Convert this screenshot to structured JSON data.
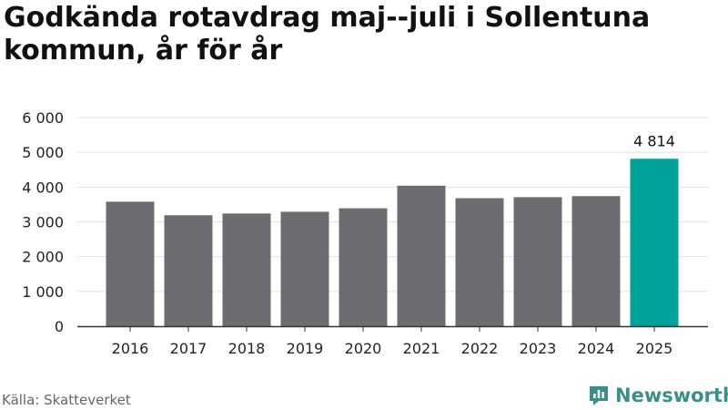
{
  "title": "Godkända rotavdrag maj--juli i Sollentuna kommun, år för år",
  "source": "Källa: Skatteverket",
  "brand": {
    "name": "Newsworthy",
    "icon": "newsworthy-logo-icon",
    "color": "#3a8f8a"
  },
  "colors": {
    "bar": "#6d6c71",
    "highlight": "#00a29a",
    "grid": "#e2e2e2",
    "axis": "#333333"
  },
  "chart_data": {
    "type": "bar",
    "categories": [
      "2016",
      "2017",
      "2018",
      "2019",
      "2020",
      "2021",
      "2022",
      "2023",
      "2024",
      "2025"
    ],
    "values": [
      3580,
      3190,
      3240,
      3290,
      3390,
      4040,
      3680,
      3710,
      3740,
      4814
    ],
    "highlight_index": 9,
    "data_labels": [
      {
        "index": 9,
        "text": "4 814"
      }
    ],
    "yticks": [
      {
        "value": 0,
        "label": "0"
      },
      {
        "value": 1000,
        "label": "1 000"
      },
      {
        "value": 2000,
        "label": "2 000"
      },
      {
        "value": 3000,
        "label": "3 000"
      },
      {
        "value": 4000,
        "label": "4 000"
      },
      {
        "value": 5000,
        "label": "5 000"
      },
      {
        "value": 6000,
        "label": "6 000"
      }
    ],
    "ylim": [
      0,
      6000
    ],
    "grid": true,
    "xlabel": "",
    "ylabel": ""
  }
}
